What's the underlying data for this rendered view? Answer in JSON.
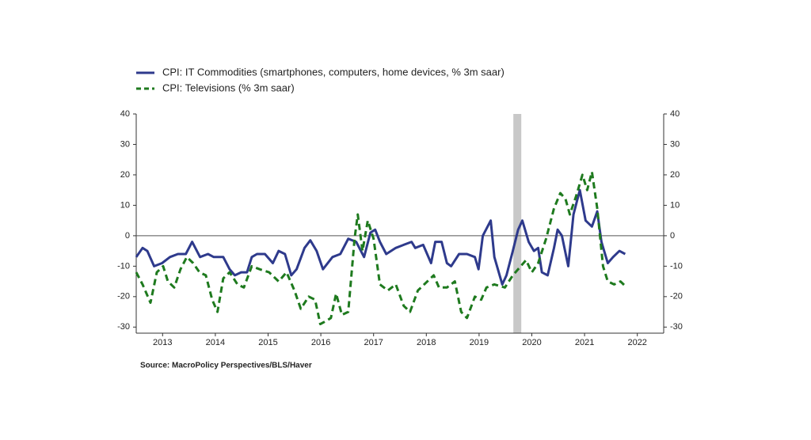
{
  "chart_data": {
    "type": "line",
    "legend_position": "top-left",
    "source": "Source: MacroPolicy Perspectives/BLS/Haver",
    "xlim": [
      2013,
      2023
    ],
    "xticks": [
      {
        "value": 2013.5,
        "label": "2013"
      },
      {
        "value": 2014.5,
        "label": "2014"
      },
      {
        "value": 2015.5,
        "label": "2015"
      },
      {
        "value": 2016.5,
        "label": "2016"
      },
      {
        "value": 2017.5,
        "label": "2017"
      },
      {
        "value": 2018.5,
        "label": "2018"
      },
      {
        "value": 2019.5,
        "label": "2019"
      },
      {
        "value": 2020.5,
        "label": "2020"
      },
      {
        "value": 2021.5,
        "label": "2021"
      },
      {
        "value": 2022.5,
        "label": "2022"
      }
    ],
    "ylim": [
      -32,
      40
    ],
    "yticks": [
      -30,
      -20,
      -10,
      0,
      10,
      20,
      30,
      40
    ],
    "shading": [
      2020.15,
      2020.3
    ],
    "series": [
      {
        "name": "CPI: IT Commodities (smartphones, computers, home devices, % 3m saar)",
        "color": "#2e3a8c",
        "dash": "solid",
        "x": [
          2013.0,
          2013.12,
          2013.21,
          2013.34,
          2013.49,
          2013.64,
          2013.79,
          2013.94,
          2014.06,
          2014.21,
          2014.36,
          2014.47,
          2014.65,
          2014.77,
          2014.87,
          2014.99,
          2015.1,
          2015.19,
          2015.29,
          2015.44,
          2015.59,
          2015.7,
          2015.82,
          2015.94,
          2016.04,
          2016.19,
          2016.3,
          2016.42,
          2016.54,
          2016.72,
          2016.87,
          2017.02,
          2017.17,
          2017.32,
          2017.44,
          2017.53,
          2017.62,
          2017.74,
          2017.92,
          2018.07,
          2018.22,
          2018.29,
          2018.44,
          2018.59,
          2018.67,
          2018.79,
          2018.89,
          2018.97,
          2019.12,
          2019.27,
          2019.42,
          2019.49,
          2019.57,
          2019.72,
          2019.79,
          2019.94,
          2020.02,
          2020.14,
          2020.24,
          2020.32,
          2020.44,
          2020.54,
          2020.62,
          2020.69,
          2020.8,
          2020.92,
          2020.99,
          2021.07,
          2021.19,
          2021.29,
          2021.41,
          2021.52,
          2021.64,
          2021.74,
          2021.82,
          2021.94,
          2022.04,
          2022.16,
          2022.27
        ],
        "values": [
          -7,
          -4,
          -5,
          -10,
          -9,
          -7,
          -6,
          -6,
          -2,
          -7,
          -6,
          -7,
          -7,
          -11,
          -13,
          -12,
          -12,
          -7,
          -6,
          -6,
          -9,
          -5,
          -6,
          -13,
          -11,
          -4,
          -1.5,
          -5,
          -11,
          -7,
          -6,
          -1,
          -2,
          -7,
          1,
          2,
          -2,
          -6,
          -4,
          -3,
          -2,
          -4,
          -3,
          -9,
          -2,
          -2,
          -9,
          -10,
          -6,
          -6,
          -7,
          -11,
          0,
          5,
          -7,
          -16,
          -13,
          -5,
          2,
          5,
          -2,
          -5,
          -4,
          -12,
          -13,
          -4,
          2,
          0,
          -10,
          7,
          15,
          5,
          3,
          8,
          -2,
          -9,
          -7,
          -5,
          -6
        ]
      },
      {
        "name": "CPI: Televisions (% 3m saar)",
        "color": "#1e7a1e",
        "dash": "dashed",
        "x": [
          2013.0,
          2013.12,
          2013.27,
          2013.39,
          2013.51,
          2013.6,
          2013.72,
          2013.84,
          2013.96,
          2014.08,
          2014.2,
          2014.32,
          2014.44,
          2014.54,
          2014.65,
          2014.77,
          2014.92,
          2015.04,
          2015.19,
          2015.34,
          2015.52,
          2015.7,
          2015.85,
          2016.0,
          2016.12,
          2016.27,
          2016.39,
          2016.49,
          2016.6,
          2016.69,
          2016.79,
          2016.9,
          2017.02,
          2017.14,
          2017.2,
          2017.29,
          2017.39,
          2017.5,
          2017.62,
          2017.77,
          2017.92,
          2018.07,
          2018.19,
          2018.34,
          2018.52,
          2018.64,
          2018.74,
          2018.89,
          2019.04,
          2019.16,
          2019.27,
          2019.42,
          2019.54,
          2019.64,
          2019.79,
          2019.99,
          2020.14,
          2020.29,
          2020.39,
          2020.5,
          2020.62,
          2020.77,
          2020.92,
          2021.04,
          2021.14,
          2021.22,
          2021.34,
          2021.46,
          2021.55,
          2021.64,
          2021.74,
          2021.85,
          2021.94,
          2022.06,
          2022.18,
          2022.3
        ],
        "values": [
          -12,
          -16,
          -22,
          -12,
          -10,
          -15,
          -17,
          -11,
          -7,
          -9,
          -12,
          -13,
          -21,
          -25,
          -14,
          -12,
          -16,
          -17,
          -10,
          -11,
          -12,
          -15,
          -12,
          -18,
          -24,
          -20,
          -21,
          -29,
          -28,
          -27,
          -19,
          -26,
          -25,
          -1,
          7,
          -5,
          5,
          -1,
          -16,
          -18,
          -16,
          -23,
          -25,
          -18,
          -15,
          -13,
          -17,
          -17,
          -15,
          -25,
          -27,
          -20,
          -21,
          -17,
          -16,
          -17,
          -13,
          -10,
          -8,
          -12,
          -9,
          -1,
          9,
          14,
          12,
          7,
          13,
          20,
          15,
          21,
          9,
          -10,
          -15,
          -16,
          -15,
          -17
        ]
      }
    ]
  }
}
